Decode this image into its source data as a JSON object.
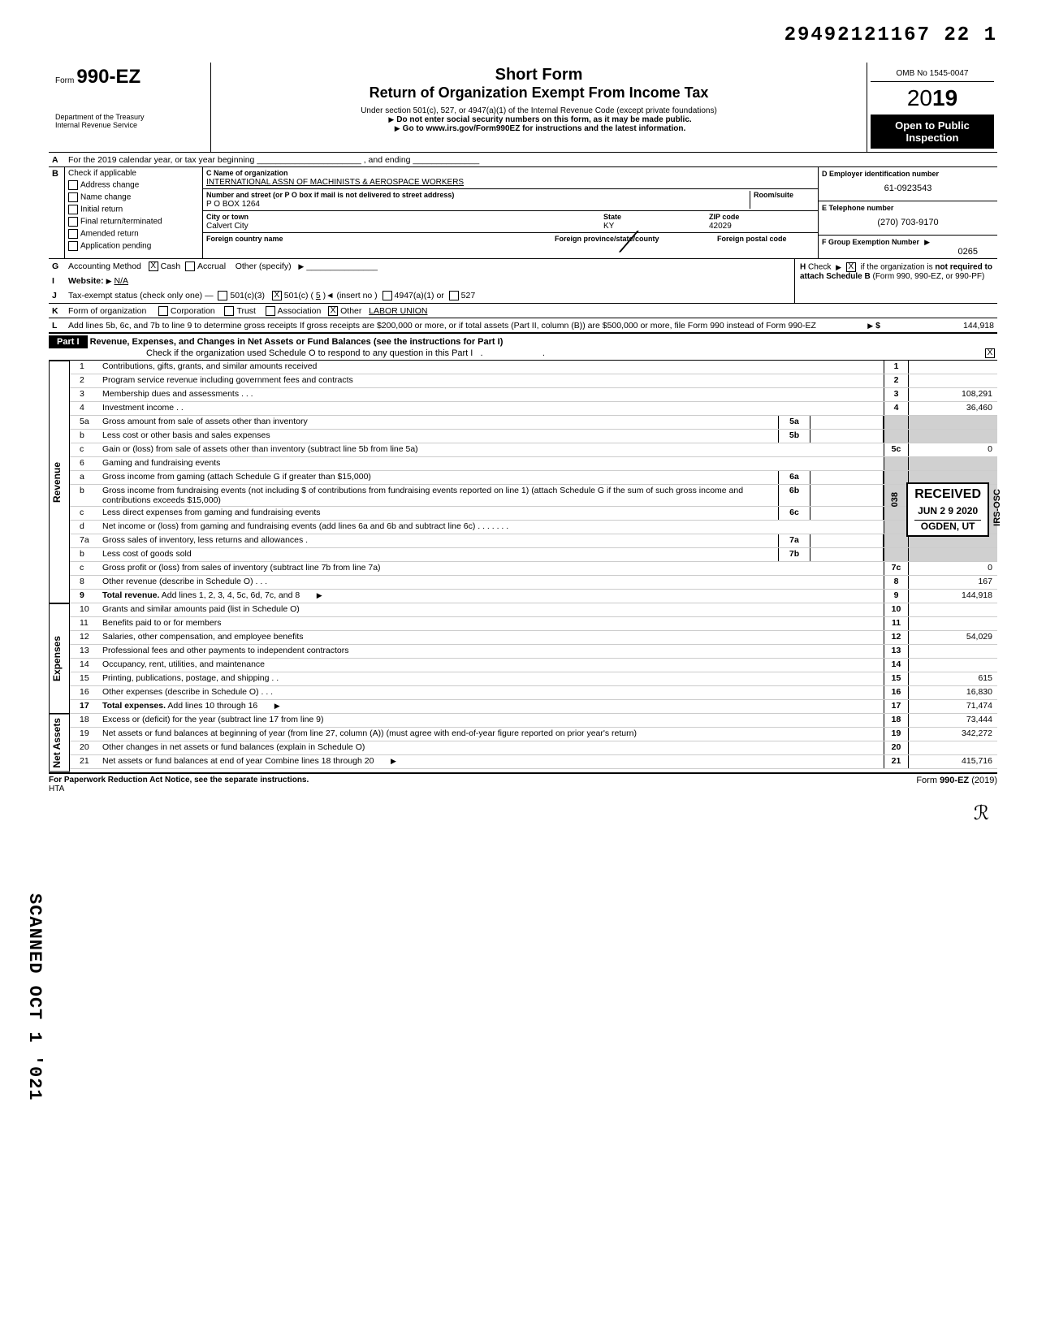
{
  "barcode": "29492121167 22 1",
  "form": {
    "prefix": "Form",
    "number": "990-EZ",
    "dept1": "Department of the Treasury",
    "dept2": "Internal Revenue Service",
    "title1": "Short Form",
    "title2": "Return of Organization Exempt From Income Tax",
    "subtitle1": "Under section 501(c), 527, or 4947(a)(1) of the Internal Revenue Code (except private foundations)",
    "subtitle2": "Do not enter social security numbers on this form, as it may be made public.",
    "subtitle3": "Go to www.irs.gov/Form990EZ for instructions and the latest information.",
    "omb": "OMB No 1545-0047",
    "year_prefix": "20",
    "year_bold": "19",
    "open": "Open to Public Inspection"
  },
  "lineA": "For the 2019 calendar year, or tax year beginning ______________________ , and ending ______________",
  "secB": {
    "label": "Check if applicable",
    "items": [
      "Address change",
      "Name change",
      "Initial return",
      "Final return/terminated",
      "Amended return",
      "Application pending"
    ]
  },
  "secC": {
    "name_label": "C  Name of organization",
    "name": "INTERNATIONAL ASSN  OF MACHINISTS & AEROSPACE WORKERS",
    "addr_label": "Number and street (or P O  box if mail is not delivered to street address)",
    "room_label": "Room/suite",
    "addr": "P O  BOX 1264",
    "city_label": "City or town",
    "state_label": "State",
    "zip_label": "ZIP code",
    "city": "Calvert City",
    "state": "KY",
    "zip": "42029",
    "foreign_country": "Foreign country name",
    "foreign_prov": "Foreign province/state/county",
    "foreign_postal": "Foreign postal code"
  },
  "secD": {
    "label": "D  Employer identification number",
    "val": "61-0923543"
  },
  "secE": {
    "label": "E  Telephone number",
    "val": "(270) 703-9170"
  },
  "secF": {
    "label": "F  Group Exemption Number",
    "val": "0265"
  },
  "lineG": {
    "label": "Accounting Method",
    "opts": [
      "Cash",
      "Accrual",
      "Other (specify)"
    ],
    "checked": 0
  },
  "lineH": {
    "text1": "Check",
    "text2": "if the organization is",
    "text3": "not required to attach Schedule B",
    "text4": "(Form 990, 990-EZ, or 990-PF)"
  },
  "lineI": {
    "label": "Website:",
    "val": "N/A"
  },
  "lineJ": {
    "label": "Tax-exempt status (check only one) —",
    "opts": [
      "501(c)(3)",
      "501(c) (",
      "5",
      ")◄ (insert no )",
      "4947(a)(1) or",
      "527"
    ],
    "checked_idx": 1
  },
  "lineK": {
    "label": "Form of organization",
    "opts": [
      "Corporation",
      "Trust",
      "Association",
      "Other"
    ],
    "other_val": "LABOR UNION",
    "checked_idx": 3
  },
  "lineL": {
    "text": "Add lines 5b, 6c, and 7b to line 9 to determine gross receipts  If gross receipts are $200,000 or more, or if total assets (Part II, column (B)) are $500,000 or more, file Form 990 instead of Form 990-EZ",
    "amount_label": "$",
    "amount": "144,918"
  },
  "part1": {
    "header": "Part I",
    "title": "Revenue, Expenses, and Changes in Net Assets or Fund Balances (see the instructions for Part I)",
    "check_text": "Check if the organization used Schedule O to respond to any question in this Part I",
    "checked": true
  },
  "sections": {
    "revenue": "Revenue",
    "expenses": "Expenses",
    "netassets": "Net Assets"
  },
  "lines": [
    {
      "n": "1",
      "desc": "Contributions, gifts, grants, and similar amounts received",
      "box": "1",
      "val": ""
    },
    {
      "n": "2",
      "desc": "Program service revenue including government fees and contracts",
      "box": "2",
      "val": ""
    },
    {
      "n": "3",
      "desc": "Membership dues and assessments          .     .     .",
      "box": "3",
      "val": "108,291"
    },
    {
      "n": "4",
      "desc": "Investment income .          .",
      "box": "4",
      "val": "36,460"
    },
    {
      "n": "5a",
      "desc": "Gross amount from sale of assets other than inventory",
      "mid": "5a",
      "midval": ""
    },
    {
      "n": "b",
      "desc": "Less  cost or other basis and sales expenses",
      "mid": "5b",
      "midval": ""
    },
    {
      "n": "c",
      "desc": "Gain or (loss) from sale of assets other than inventory (subtract line 5b from line 5a)",
      "box": "5c",
      "val": "0"
    },
    {
      "n": "6",
      "desc": "Gaming and fundraising events"
    },
    {
      "n": "a",
      "desc": "Gross income from gaming (attach Schedule G if greater than $15,000)",
      "mid": "6a",
      "midval": ""
    },
    {
      "n": "b",
      "desc": "Gross income from fundraising events (not including          $                         of contributions from fundraising events reported on line 1) (attach Schedule G if the sum of such gross income and contributions exceeds $15,000)",
      "mid": "6b",
      "midval": ""
    },
    {
      "n": "c",
      "desc": "Less  direct expenses from gaming and fundraising events",
      "mid": "6c",
      "midval": ""
    },
    {
      "n": "d",
      "desc": "Net income or (loss) from gaming and fundraising events (add lines 6a and 6b and subtract line 6c)          .    .            .          .         .      .       ."
    },
    {
      "n": "7a",
      "desc": "Gross sales of inventory, less returns and allowances       .",
      "mid": "7a",
      "midval": ""
    },
    {
      "n": "b",
      "desc": "Less  cost of goods sold",
      "mid": "7b",
      "midval": ""
    },
    {
      "n": "c",
      "desc": "Gross profit or (loss) from sales of inventory (subtract line 7b from line 7a)",
      "box": "7c",
      "val": "0"
    },
    {
      "n": "8",
      "desc": "Other revenue (describe in Schedule O)         .        .    .",
      "box": "8",
      "val": "167"
    },
    {
      "n": "9",
      "desc": "Total revenue. Add lines 1, 2, 3, 4, 5c, 6d, 7c, and 8",
      "box": "9",
      "val": "144,918",
      "bold": true,
      "arrow": true
    },
    {
      "n": "10",
      "desc": "Grants and similar amounts paid (list in Schedule O)",
      "box": "10",
      "val": ""
    },
    {
      "n": "11",
      "desc": "Benefits paid to or for members",
      "box": "11",
      "val": ""
    },
    {
      "n": "12",
      "desc": "Salaries, other compensation, and employee benefits",
      "box": "12",
      "val": "54,029"
    },
    {
      "n": "13",
      "desc": "Professional fees and other payments to independent contractors",
      "box": "13",
      "val": ""
    },
    {
      "n": "14",
      "desc": "Occupancy, rent, utilities, and maintenance",
      "box": "14",
      "val": ""
    },
    {
      "n": "15",
      "desc": "Printing, publications, postage, and shipping       .   .",
      "box": "15",
      "val": "615"
    },
    {
      "n": "16",
      "desc": "Other expenses (describe in Schedule O)               .  .   .",
      "box": "16",
      "val": "16,830"
    },
    {
      "n": "17",
      "desc": "Total expenses. Add lines 10 through 16",
      "box": "17",
      "val": "71,474",
      "bold": true,
      "arrow": true
    },
    {
      "n": "18",
      "desc": "Excess or (deficit) for the year (subtract line 17 from line 9)",
      "box": "18",
      "val": "73,444"
    },
    {
      "n": "19",
      "desc": "Net assets or fund balances at beginning of year (from line 27, column (A)) (must agree with end-of-year figure reported on prior year's return)",
      "box": "19",
      "val": "342,272"
    },
    {
      "n": "20",
      "desc": "Other changes in net assets or fund balances (explain in Schedule O)",
      "box": "20",
      "val": ""
    },
    {
      "n": "21",
      "desc": "Net assets or fund balances at end of year  Combine lines 18 through 20",
      "box": "21",
      "val": "415,716",
      "arrow": true
    }
  ],
  "footer": {
    "left": "For Paperwork Reduction Act Notice, see the separate instructions.",
    "hta": "HTA",
    "right": "Form 990-EZ (2019)"
  },
  "stamp": {
    "received": "RECEIVED",
    "date": "JUN 2 9 2020",
    "loc": "OGDEN, UT",
    "side": "IRS-OSC",
    "sidenum": "038"
  },
  "scanned": "SCANNED OCT 1   '021"
}
